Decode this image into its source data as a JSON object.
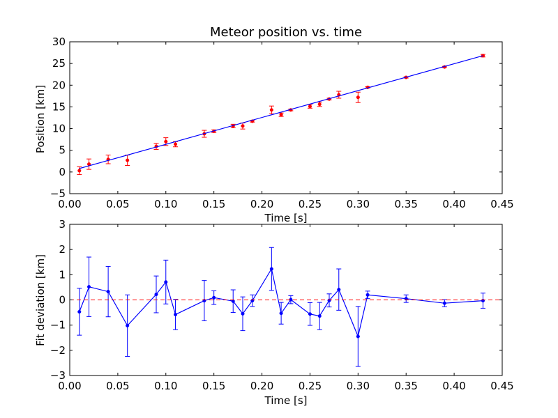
{
  "chart_data": [
    {
      "type": "scatter",
      "title": "Meteor position vs. time",
      "xlabel": "Time [s]",
      "ylabel": "Position [km]",
      "xlim": [
        0.0,
        0.45
      ],
      "ylim": [
        -5,
        30
      ],
      "xticks": [
        "0.00",
        "0.05",
        "0.10",
        "0.15",
        "0.20",
        "0.25",
        "0.30",
        "0.35",
        "0.40",
        "0.45"
      ],
      "yticks": [
        "−5",
        "0",
        "5",
        "10",
        "15",
        "20",
        "25",
        "30"
      ],
      "grid": false,
      "series": [
        {
          "kind": "errorbar-points",
          "color": "#ff0000",
          "x": [
            0.01,
            0.02,
            0.04,
            0.06,
            0.09,
            0.1,
            0.11,
            0.14,
            0.15,
            0.17,
            0.18,
            0.19,
            0.21,
            0.22,
            0.23,
            0.25,
            0.26,
            0.27,
            0.28,
            0.3,
            0.31,
            0.35,
            0.39,
            0.43
          ],
          "y": [
            0.3,
            1.8,
            2.9,
            2.7,
            5.9,
            7.0,
            6.4,
            8.8,
            9.4,
            10.6,
            10.6,
            11.7,
            14.3,
            13.2,
            14.3,
            15.1,
            15.6,
            16.8,
            17.8,
            17.2,
            19.5,
            21.8,
            24.2,
            26.8
          ],
          "yerr": [
            0.9,
            1.2,
            1.0,
            1.2,
            0.7,
            0.9,
            0.6,
            0.8,
            0.3,
            0.4,
            0.7,
            0.2,
            0.9,
            0.4,
            0.2,
            0.4,
            0.5,
            0.2,
            0.8,
            1.2,
            0.15,
            0.15,
            0.15,
            0.3
          ]
        },
        {
          "kind": "fit-line",
          "color": "#0000ff",
          "x": [
            0.01,
            0.43
          ],
          "y": [
            0.8,
            26.8
          ]
        }
      ]
    },
    {
      "type": "line",
      "xlabel": "Time [s]",
      "ylabel": "Fit deviation [km]",
      "xlim": [
        0.0,
        0.45
      ],
      "ylim": [
        -3,
        3
      ],
      "xticks": [
        "0.00",
        "0.05",
        "0.10",
        "0.15",
        "0.20",
        "0.25",
        "0.30",
        "0.35",
        "0.40",
        "0.45"
      ],
      "yticks": [
        "−3",
        "−2",
        "−1",
        "0",
        "1",
        "2",
        "3"
      ],
      "grid": false,
      "series": [
        {
          "kind": "errorbar-line",
          "color": "#0000ff",
          "x": [
            0.01,
            0.02,
            0.04,
            0.06,
            0.09,
            0.1,
            0.11,
            0.14,
            0.15,
            0.17,
            0.18,
            0.19,
            0.21,
            0.22,
            0.23,
            0.25,
            0.26,
            0.27,
            0.28,
            0.3,
            0.31,
            0.35,
            0.39,
            0.43
          ],
          "y": [
            -0.47,
            0.52,
            0.33,
            -1.02,
            0.22,
            0.71,
            -0.58,
            -0.03,
            0.09,
            -0.05,
            -0.55,
            -0.03,
            1.23,
            -0.53,
            0.01,
            -0.56,
            -0.64,
            -0.02,
            0.41,
            -1.45,
            0.2,
            0.05,
            -0.13,
            -0.03
          ],
          "yerr": [
            0.93,
            1.18,
            1.0,
            1.22,
            0.73,
            0.87,
            0.6,
            0.8,
            0.27,
            0.45,
            0.67,
            0.23,
            0.85,
            0.43,
            0.16,
            0.45,
            0.54,
            0.26,
            0.82,
            1.19,
            0.15,
            0.15,
            0.14,
            0.3
          ]
        },
        {
          "kind": "reference-dashed",
          "color": "#ff0000",
          "y": 0
        }
      ]
    }
  ]
}
